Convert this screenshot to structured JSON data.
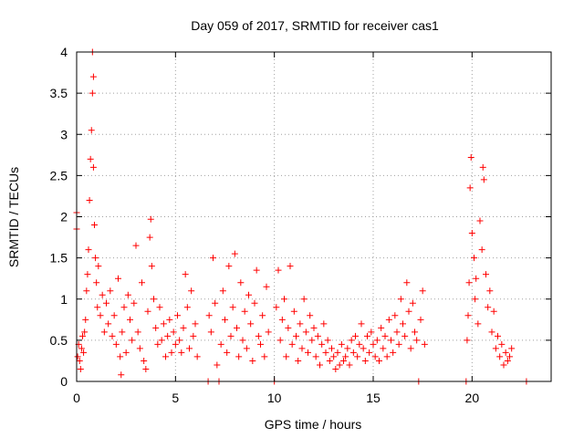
{
  "chart_data": {
    "type": "scatter",
    "title": "Day 059 of 2017, SRMTID for receiver cas1",
    "xlabel": "GPS time / hours",
    "ylabel": "SRMTID / TECUs",
    "xlim": [
      0,
      24
    ],
    "ylim": [
      0,
      4
    ],
    "x_ticks": [
      0,
      5,
      10,
      15,
      20
    ],
    "x_tick_labels": [
      "0",
      "5",
      "10",
      "15",
      "20"
    ],
    "y_ticks": [
      0,
      0.5,
      1,
      1.5,
      2,
      2.5,
      3,
      3.5,
      4
    ],
    "y_tick_labels": [
      "0",
      "0.5",
      "1",
      "1.5",
      "2",
      "2.5",
      "3",
      "3.5",
      "4"
    ],
    "grid": true,
    "marker": "+",
    "color": "#ff0000",
    "description": "Dense red plus-marker scatter; values summarized as a representative sample",
    "series": [
      {
        "name": "SRMTID cas1",
        "points": [
          [
            0.0,
            2.05
          ],
          [
            0.0,
            1.85
          ],
          [
            0.05,
            0.3
          ],
          [
            0.1,
            0.45
          ],
          [
            0.15,
            0.25
          ],
          [
            0.2,
            0.15
          ],
          [
            0.25,
            0.4
          ],
          [
            0.3,
            0.55
          ],
          [
            0.35,
            0.35
          ],
          [
            0.4,
            0.6
          ],
          [
            0.45,
            0.75
          ],
          [
            0.5,
            1.1
          ],
          [
            0.55,
            1.3
          ],
          [
            0.6,
            1.6
          ],
          [
            0.65,
            2.2
          ],
          [
            0.7,
            2.7
          ],
          [
            0.75,
            3.05
          ],
          [
            0.8,
            4.0
          ],
          [
            0.8,
            3.5
          ],
          [
            0.85,
            3.7
          ],
          [
            0.85,
            2.6
          ],
          [
            0.9,
            1.9
          ],
          [
            0.95,
            1.5
          ],
          [
            1.0,
            1.2
          ],
          [
            1.05,
            0.9
          ],
          [
            1.1,
            1.4
          ],
          [
            1.2,
            0.8
          ],
          [
            1.3,
            1.05
          ],
          [
            1.4,
            0.6
          ],
          [
            1.5,
            0.95
          ],
          [
            1.6,
            0.7
          ],
          [
            1.7,
            1.1
          ],
          [
            1.8,
            0.55
          ],
          [
            1.9,
            0.8
          ],
          [
            2.0,
            0.45
          ],
          [
            2.1,
            1.25
          ],
          [
            2.2,
            0.3
          ],
          [
            2.25,
            0.08
          ],
          [
            2.3,
            0.6
          ],
          [
            2.4,
            0.9
          ],
          [
            2.5,
            0.35
          ],
          [
            2.6,
            1.05
          ],
          [
            2.7,
            0.75
          ],
          [
            2.8,
            0.5
          ],
          [
            2.9,
            0.95
          ],
          [
            3.0,
            1.65
          ],
          [
            3.1,
            0.6
          ],
          [
            3.2,
            0.4
          ],
          [
            3.3,
            1.2
          ],
          [
            3.4,
            0.25
          ],
          [
            3.5,
            0.15
          ],
          [
            3.6,
            0.85
          ],
          [
            3.7,
            1.75
          ],
          [
            3.75,
            1.97
          ],
          [
            3.8,
            1.4
          ],
          [
            3.9,
            1.0
          ],
          [
            4.0,
            0.65
          ],
          [
            4.1,
            0.45
          ],
          [
            4.2,
            0.9
          ],
          [
            4.3,
            0.5
          ],
          [
            4.4,
            0.7
          ],
          [
            4.5,
            0.3
          ],
          [
            4.6,
            0.55
          ],
          [
            4.7,
            0.75
          ],
          [
            4.8,
            0.35
          ],
          [
            4.9,
            0.6
          ],
          [
            5.0,
            0.45
          ],
          [
            5.1,
            0.8
          ],
          [
            5.2,
            0.5
          ],
          [
            5.3,
            0.35
          ],
          [
            5.4,
            0.65
          ],
          [
            5.5,
            1.3
          ],
          [
            5.6,
            0.9
          ],
          [
            5.7,
            0.4
          ],
          [
            5.8,
            1.1
          ],
          [
            5.9,
            0.55
          ],
          [
            6.0,
            0.7
          ],
          [
            6.1,
            0.3
          ],
          [
            6.65,
            0.0
          ],
          [
            6.7,
            0.8
          ],
          [
            6.8,
            0.6
          ],
          [
            6.9,
            1.5
          ],
          [
            7.0,
            0.95
          ],
          [
            7.1,
            0.2
          ],
          [
            7.2,
            0.0
          ],
          [
            7.3,
            0.45
          ],
          [
            7.4,
            1.1
          ],
          [
            7.5,
            0.75
          ],
          [
            7.6,
            0.35
          ],
          [
            7.7,
            1.4
          ],
          [
            7.8,
            0.55
          ],
          [
            7.9,
            0.9
          ],
          [
            8.0,
            1.55
          ],
          [
            8.1,
            0.65
          ],
          [
            8.2,
            0.3
          ],
          [
            8.3,
            1.2
          ],
          [
            8.4,
            0.5
          ],
          [
            8.5,
            0.85
          ],
          [
            8.6,
            0.4
          ],
          [
            8.7,
            1.05
          ],
          [
            8.8,
            0.7
          ],
          [
            8.9,
            0.25
          ],
          [
            9.0,
            0.95
          ],
          [
            9.1,
            1.35
          ],
          [
            9.2,
            0.55
          ],
          [
            9.3,
            0.45
          ],
          [
            9.4,
            0.8
          ],
          [
            9.5,
            0.3
          ],
          [
            9.6,
            1.15
          ],
          [
            9.7,
            0.6
          ],
          [
            10.0,
            0.0
          ],
          [
            10.1,
            0.9
          ],
          [
            10.2,
            1.35
          ],
          [
            10.3,
            0.5
          ],
          [
            10.4,
            0.75
          ],
          [
            10.5,
            1.0
          ],
          [
            10.6,
            0.3
          ],
          [
            10.7,
            0.65
          ],
          [
            10.8,
            1.4
          ],
          [
            10.9,
            0.45
          ],
          [
            11.0,
            0.85
          ],
          [
            11.1,
            0.55
          ],
          [
            11.2,
            0.25
          ],
          [
            11.3,
            0.7
          ],
          [
            11.4,
            0.4
          ],
          [
            11.5,
            1.0
          ],
          [
            11.6,
            0.6
          ],
          [
            11.7,
            0.35
          ],
          [
            11.8,
            0.8
          ],
          [
            11.9,
            0.5
          ],
          [
            12.0,
            0.65
          ],
          [
            12.1,
            0.3
          ],
          [
            12.2,
            0.55
          ],
          [
            12.3,
            0.2
          ],
          [
            12.4,
            0.45
          ],
          [
            12.5,
            0.7
          ],
          [
            12.6,
            0.35
          ],
          [
            12.7,
            0.5
          ],
          [
            12.8,
            0.25
          ],
          [
            12.9,
            0.4
          ],
          [
            13.0,
            0.3
          ],
          [
            13.1,
            0.15
          ],
          [
            13.2,
            0.35
          ],
          [
            13.3,
            0.2
          ],
          [
            13.4,
            0.45
          ],
          [
            13.5,
            0.25
          ],
          [
            13.6,
            0.3
          ],
          [
            13.7,
            0.4
          ],
          [
            13.8,
            0.2
          ],
          [
            13.9,
            0.5
          ],
          [
            14.0,
            0.35
          ],
          [
            14.1,
            0.55
          ],
          [
            14.2,
            0.3
          ],
          [
            14.3,
            0.45
          ],
          [
            14.4,
            0.7
          ],
          [
            14.5,
            0.4
          ],
          [
            14.6,
            0.25
          ],
          [
            14.7,
            0.55
          ],
          [
            14.8,
            0.35
          ],
          [
            14.9,
            0.6
          ],
          [
            15.0,
            0.45
          ],
          [
            15.1,
            0.3
          ],
          [
            15.2,
            0.5
          ],
          [
            15.3,
            0.25
          ],
          [
            15.4,
            0.65
          ],
          [
            15.5,
            0.4
          ],
          [
            15.6,
            0.55
          ],
          [
            15.7,
            0.3
          ],
          [
            15.8,
            0.75
          ],
          [
            15.9,
            0.5
          ],
          [
            16.0,
            0.35
          ],
          [
            16.1,
            0.8
          ],
          [
            16.2,
            0.6
          ],
          [
            16.3,
            0.45
          ],
          [
            16.4,
            1.0
          ],
          [
            16.5,
            0.7
          ],
          [
            16.6,
            0.55
          ],
          [
            16.7,
            1.2
          ],
          [
            16.8,
            0.85
          ],
          [
            16.9,
            0.4
          ],
          [
            17.0,
            0.95
          ],
          [
            17.1,
            0.6
          ],
          [
            17.2,
            0.5
          ],
          [
            17.3,
            0.0
          ],
          [
            17.4,
            0.75
          ],
          [
            17.5,
            1.1
          ],
          [
            17.6,
            0.45
          ],
          [
            19.7,
            0.0
          ],
          [
            19.75,
            0.5
          ],
          [
            19.8,
            0.8
          ],
          [
            19.85,
            1.2
          ],
          [
            19.9,
            2.35
          ],
          [
            19.95,
            2.72
          ],
          [
            20.0,
            1.8
          ],
          [
            20.1,
            1.5
          ],
          [
            20.15,
            1.0
          ],
          [
            20.2,
            1.25
          ],
          [
            20.3,
            0.7
          ],
          [
            20.4,
            1.95
          ],
          [
            20.5,
            1.6
          ],
          [
            20.55,
            2.6
          ],
          [
            20.6,
            2.45
          ],
          [
            20.7,
            1.3
          ],
          [
            20.8,
            0.9
          ],
          [
            20.9,
            1.1
          ],
          [
            21.0,
            0.6
          ],
          [
            21.1,
            0.85
          ],
          [
            21.2,
            0.4
          ],
          [
            21.3,
            0.55
          ],
          [
            21.4,
            0.3
          ],
          [
            21.5,
            0.45
          ],
          [
            21.6,
            0.2
          ],
          [
            21.7,
            0.35
          ],
          [
            21.8,
            0.25
          ],
          [
            21.9,
            0.3
          ],
          [
            22.0,
            0.4
          ],
          [
            22.75,
            0.0
          ]
        ]
      }
    ]
  }
}
